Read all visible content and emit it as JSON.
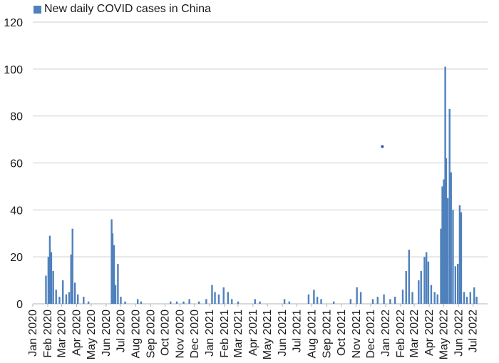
{
  "chart_data": {
    "type": "bar",
    "legend": {
      "position": "top-left",
      "entries": [
        "New daily COVID cases in China"
      ]
    },
    "series": [
      {
        "name": "New daily COVID cases in China",
        "color": "#4f81bd",
        "points": [
          [
            "2020-01-28",
            12
          ],
          [
            "2020-02-02",
            20
          ],
          [
            "2020-02-05",
            29
          ],
          [
            "2020-02-08",
            22
          ],
          [
            "2020-02-12",
            14
          ],
          [
            "2020-02-18",
            6
          ],
          [
            "2020-02-25",
            3
          ],
          [
            "2020-03-03",
            10
          ],
          [
            "2020-03-10",
            4
          ],
          [
            "2020-03-16",
            5
          ],
          [
            "2020-03-20",
            21
          ],
          [
            "2020-03-23",
            32
          ],
          [
            "2020-03-28",
            9
          ],
          [
            "2020-04-03",
            4
          ],
          [
            "2020-04-15",
            3
          ],
          [
            "2020-04-25",
            1
          ],
          [
            "2020-06-12",
            36
          ],
          [
            "2020-06-14",
            30
          ],
          [
            "2020-06-17",
            25
          ],
          [
            "2020-06-20",
            8
          ],
          [
            "2020-06-25",
            17
          ],
          [
            "2020-07-01",
            3
          ],
          [
            "2020-07-10",
            1
          ],
          [
            "2020-08-05",
            2
          ],
          [
            "2020-08-12",
            1
          ],
          [
            "2020-10-12",
            1
          ],
          [
            "2020-10-25",
            1
          ],
          [
            "2020-11-08",
            1
          ],
          [
            "2020-11-20",
            2
          ],
          [
            "2020-12-10",
            1
          ],
          [
            "2020-12-25",
            2
          ],
          [
            "2021-01-06",
            8
          ],
          [
            "2021-01-12",
            5
          ],
          [
            "2021-01-20",
            4
          ],
          [
            "2021-01-30",
            7
          ],
          [
            "2021-02-08",
            5
          ],
          [
            "2021-02-16",
            2
          ],
          [
            "2021-03-01",
            1
          ],
          [
            "2021-04-05",
            2
          ],
          [
            "2021-04-15",
            1
          ],
          [
            "2021-06-05",
            2
          ],
          [
            "2021-06-15",
            1
          ],
          [
            "2021-07-25",
            4
          ],
          [
            "2021-08-05",
            6
          ],
          [
            "2021-08-12",
            3
          ],
          [
            "2021-08-20",
            2
          ],
          [
            "2021-09-15",
            1
          ],
          [
            "2021-10-20",
            2
          ],
          [
            "2021-11-02",
            7
          ],
          [
            "2021-11-10",
            5
          ],
          [
            "2021-12-05",
            2
          ],
          [
            "2021-12-15",
            3
          ],
          [
            "2021-12-28",
            4
          ],
          [
            "2022-01-10",
            2
          ],
          [
            "2022-01-20",
            3
          ],
          [
            "2022-02-05",
            6
          ],
          [
            "2022-02-12",
            14
          ],
          [
            "2022-02-18",
            23
          ],
          [
            "2022-02-25",
            5
          ],
          [
            "2022-03-10",
            10
          ],
          [
            "2022-03-15",
            14
          ],
          [
            "2022-03-22",
            20
          ],
          [
            "2022-03-26",
            22
          ],
          [
            "2022-03-30",
            18
          ],
          [
            "2022-04-05",
            8
          ],
          [
            "2022-04-12",
            5
          ],
          [
            "2022-04-18",
            4
          ],
          [
            "2022-04-25",
            32
          ],
          [
            "2022-04-28",
            50
          ],
          [
            "2022-05-01",
            53
          ],
          [
            "2022-05-04",
            101
          ],
          [
            "2022-05-06",
            62
          ],
          [
            "2022-05-09",
            45
          ],
          [
            "2022-05-13",
            83
          ],
          [
            "2022-05-16",
            56
          ],
          [
            "2022-05-20",
            40
          ],
          [
            "2022-05-25",
            16
          ],
          [
            "2022-05-30",
            17
          ],
          [
            "2022-06-03",
            42
          ],
          [
            "2022-06-06",
            39
          ],
          [
            "2022-06-12",
            5
          ],
          [
            "2022-06-18",
            3
          ],
          [
            "2022-06-25",
            5
          ],
          [
            "2022-07-03",
            7
          ],
          [
            "2022-07-08",
            3
          ]
        ]
      }
    ],
    "annotations": [
      {
        "type": "dot",
        "x": "2021-12-25",
        "y": 67,
        "color": "#3a4db5"
      }
    ],
    "x_ticks": [
      "Jan 2020",
      "Feb 2020",
      "Mar 2020",
      "Apr 2020",
      "May 2020",
      "Jun 2020",
      "Jul 2020",
      "Aug 2020",
      "Sep 2020",
      "Oct 2020",
      "Nov 2020",
      "Dec 2020",
      "Jan 2021",
      "Feb 2021",
      "Mar 2021",
      "Apr 2021",
      "May 2021",
      "Jun 2021",
      "Jul 2021",
      "Aug 2021",
      "Sep 2021",
      "Oct 2021",
      "Nov 2021",
      "Dec 2021",
      "Jan 2022",
      "Feb 2022",
      "Mar 2022",
      "Apr 2022",
      "May 2022",
      "Jun 2022",
      "Jul 2022"
    ],
    "x_range": [
      "2020-01-01",
      "2022-07-31"
    ],
    "ylim": [
      0,
      120
    ],
    "y_ticks": [
      0,
      20,
      40,
      60,
      80,
      100,
      120
    ],
    "grid": {
      "y": true,
      "color": "#cccccc"
    }
  }
}
